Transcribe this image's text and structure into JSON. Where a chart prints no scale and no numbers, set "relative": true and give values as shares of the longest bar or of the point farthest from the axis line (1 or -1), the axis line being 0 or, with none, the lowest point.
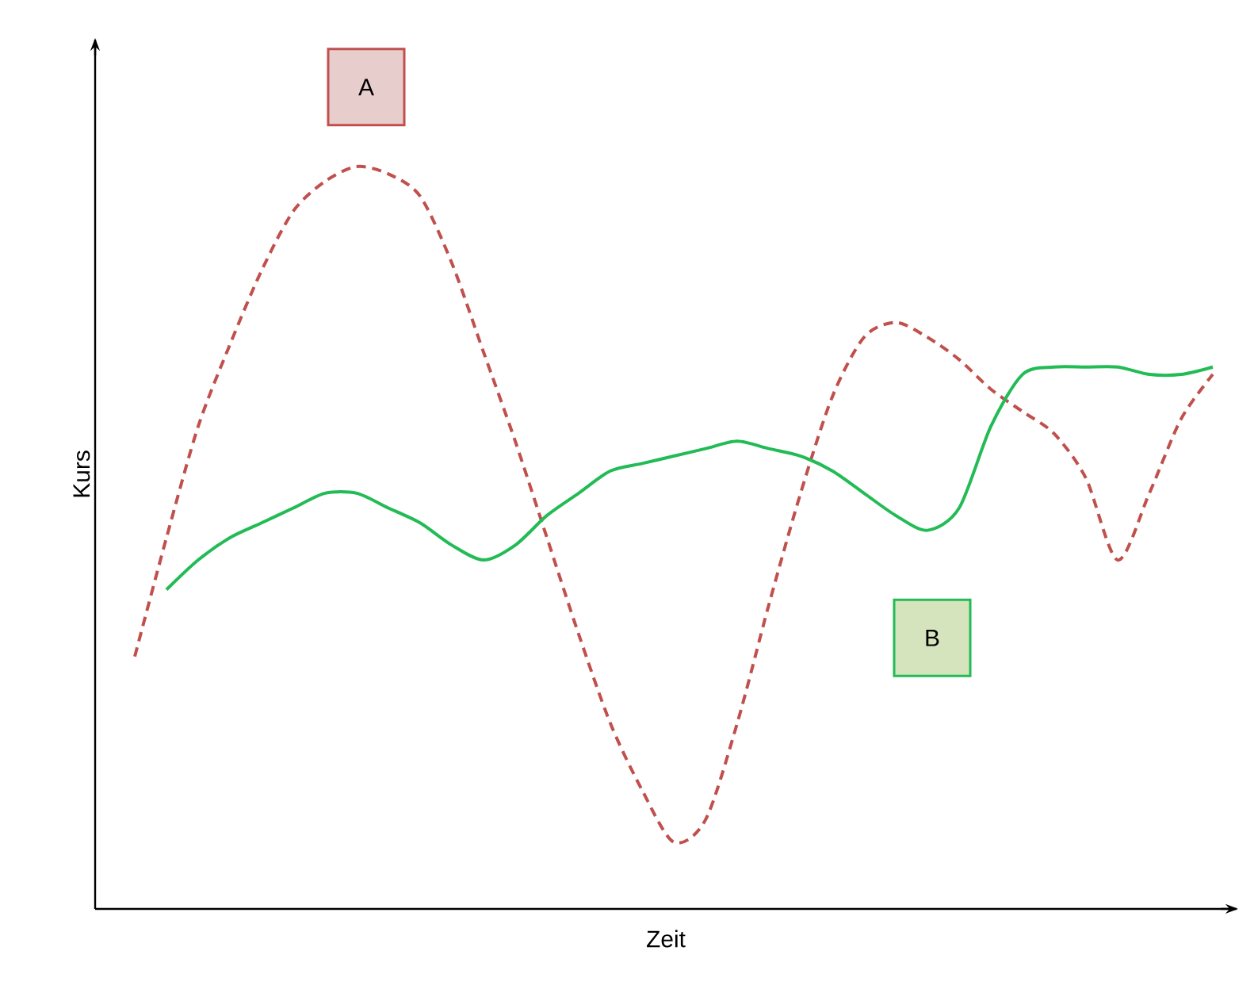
{
  "chart_data": {
    "type": "line",
    "relative": true,
    "xlabel": "Zeit",
    "ylabel": "Kurs",
    "marker": "none",
    "categories": [
      null,
      null,
      null,
      null,
      null,
      null,
      null,
      null,
      null,
      null,
      null,
      null,
      null,
      null,
      null,
      null,
      null,
      null,
      null,
      null,
      null,
      null,
      null,
      null,
      null,
      null,
      null,
      null,
      null,
      null,
      null,
      null,
      null,
      null,
      null
    ],
    "series": [
      {
        "name": "A",
        "color": "#c0504d",
        "line_style": "dashed",
        "values": [
          0.34,
          0.5,
          0.65,
          0.76,
          0.86,
          0.94,
          0.98,
          1,
          0.99,
          0.96,
          0.87,
          0.75,
          0.63,
          0.5,
          0.37,
          0.25,
          0.16,
          0.09,
          0.12,
          0.25,
          0.41,
          0.56,
          0.69,
          0.77,
          0.79,
          0.77,
          0.74,
          0.7,
          0.67,
          0.64,
          0.58,
          0.47,
          0.56,
          0.66,
          0.72
        ]
      },
      {
        "name": "B",
        "color": "#22bb55",
        "line_style": "solid",
        "values": [
          null,
          0.43,
          0.47,
          0.5,
          0.52,
          0.54,
          0.56,
          0.56,
          0.54,
          0.52,
          0.49,
          0.47,
          0.49,
          0.53,
          0.56,
          0.59,
          0.6,
          0.61,
          0.62,
          0.63,
          0.62,
          0.61,
          0.59,
          0.56,
          0.53,
          0.51,
          0.54,
          0.65,
          0.72,
          0.73,
          0.73,
          0.73,
          0.72,
          0.72,
          0.73
        ]
      }
    ]
  }
}
